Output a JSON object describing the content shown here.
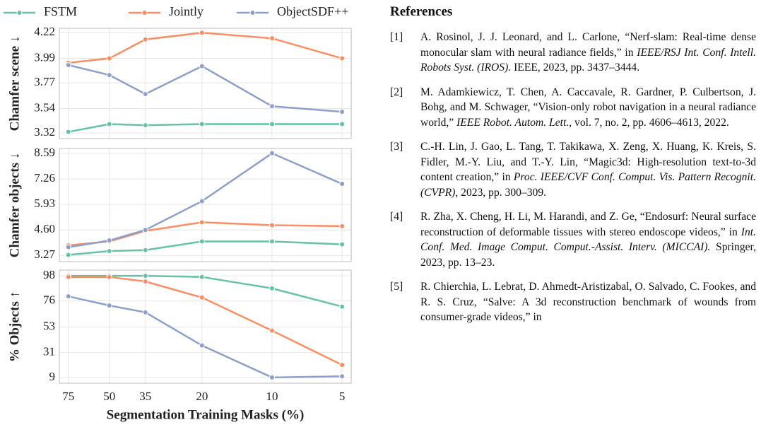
{
  "chart_data": [
    {
      "type": "line",
      "legend": "top",
      "ylabel": "Chamfer scene ↓",
      "x": [
        75,
        50,
        35,
        20,
        10,
        5
      ],
      "xscale": "log",
      "xlim": [
        82,
        4.57
      ],
      "xticks": [
        75,
        50,
        35,
        20,
        10,
        5
      ],
      "ylim": [
        3.27,
        4.26
      ],
      "yticks": [
        3.32,
        3.54,
        3.77,
        3.99,
        4.22
      ],
      "grid": true,
      "series": [
        {
          "name": "FSTM",
          "color": "#66c2a5",
          "values": [
            3.33,
            3.4,
            3.39,
            3.4,
            3.4,
            3.4
          ]
        },
        {
          "name": "Jointly",
          "color": "#fc8d62",
          "values": [
            3.95,
            3.99,
            4.16,
            4.22,
            4.17,
            3.99
          ]
        },
        {
          "name": "ObjectSDF++",
          "color": "#8da0cb",
          "values": [
            3.93,
            3.84,
            3.67,
            3.92,
            3.56,
            3.51
          ]
        }
      ]
    },
    {
      "type": "line",
      "ylabel": "Chamfer objects ↓",
      "x": [
        75,
        50,
        35,
        20,
        10,
        5
      ],
      "xscale": "log",
      "xlim": [
        82,
        4.57
      ],
      "xticks": [
        75,
        50,
        35,
        20,
        10,
        5
      ],
      "ylim": [
        2.95,
        8.85
      ],
      "yticks": [
        3.27,
        {
          "value": 4.6,
          "label": "4.60"
        },
        5.93,
        7.26,
        8.59
      ],
      "grid": true,
      "series": [
        {
          "color": "#66c2a5",
          "values": [
            3.3,
            3.5,
            3.55,
            4.0,
            4.0,
            3.85
          ]
        },
        {
          "color": "#fc8d62",
          "values": [
            3.8,
            4.0,
            4.55,
            5.0,
            4.85,
            4.8
          ]
        },
        {
          "color": "#8da0cb",
          "values": [
            3.7,
            4.05,
            4.6,
            6.1,
            8.6,
            7.0
          ]
        }
      ]
    },
    {
      "type": "line",
      "ylabel": "% Objects ↑",
      "xlabel": "Segmentation Training Masks (%)",
      "x": [
        75,
        50,
        35,
        20,
        10,
        5
      ],
      "xscale": "log",
      "xlim": [
        82,
        4.57
      ],
      "xticks": [
        75,
        50,
        35,
        20,
        10,
        5
      ],
      "ylim": [
        4,
        103
      ],
      "yticks": [
        98,
        76,
        53,
        31,
        9
      ],
      "grid": true,
      "series": [
        {
          "color": "#66c2a5",
          "values": [
            98,
            98,
            98,
            97,
            87,
            71
          ]
        },
        {
          "color": "#fc8d62",
          "values": [
            97,
            97,
            93,
            79,
            50,
            20
          ]
        },
        {
          "color": "#8da0cb",
          "values": [
            80,
            72,
            66,
            37,
            9,
            10
          ]
        }
      ]
    }
  ],
  "references": {
    "title": "References",
    "items": [
      {
        "label": "[1]",
        "parts": [
          {
            "text": "A. Rosinol, J. J. Leonard, and L. Carlone, “Nerf-slam: Real-time dense monocular slam with neural radiance fields,” in "
          },
          {
            "text": "IEEE/RSJ Int. Conf. Intell. Robots Syst. (IROS).",
            "italic": true
          },
          {
            "text": " IEEE, 2023, pp. 3437–3444."
          }
        ]
      },
      {
        "label": "[2]",
        "parts": [
          {
            "text": "M. Adamkiewicz, T. Chen, A. Caccavale, R. Gardner, P. Culbertson, J. Bohg, and M. Schwager, “Vision-only robot navigation in a neural radiance world,” "
          },
          {
            "text": "IEEE Robot. Autom. Lett.",
            "italic": true
          },
          {
            "text": ", vol. 7, no. 2, pp. 4606–4613, 2022."
          }
        ]
      },
      {
        "label": "[3]",
        "parts": [
          {
            "text": "C.-H. Lin, J. Gao, L. Tang, T. Takikawa, X. Zeng, X. Huang, K. Kreis, S. Fidler, M.-Y. Liu, and T.-Y. Lin, “Magic3d: High-resolution text-to-3d content creation,” in "
          },
          {
            "text": "Proc. IEEE/CVF Conf. Comput. Vis. Pattern Recognit. (CVPR)",
            "italic": true
          },
          {
            "text": ", 2023, pp. 300–309."
          }
        ]
      },
      {
        "label": "[4]",
        "parts": [
          {
            "text": "R. Zha, X. Cheng, H. Li, M. Harandi, and Z. Ge, “Endosurf: Neural surface reconstruction of deformable tissues with stereo endoscope videos,” in "
          },
          {
            "text": "Int. Conf. Med. Image Comput. Comput.-Assist. Interv. (MICCAI).",
            "italic": true
          },
          {
            "text": " Springer, 2023, pp. 13–23."
          }
        ]
      },
      {
        "label": "[5]",
        "parts": [
          {
            "text": "R. Chierchia, L. Lebrat, D. Ahmedt-Aristizabal, O. Salvado, C. Fookes, and R. S. Cruz, “Salve: A 3d reconstruction benchmark of wounds from consumer-grade videos,” in"
          }
        ]
      }
    ]
  }
}
